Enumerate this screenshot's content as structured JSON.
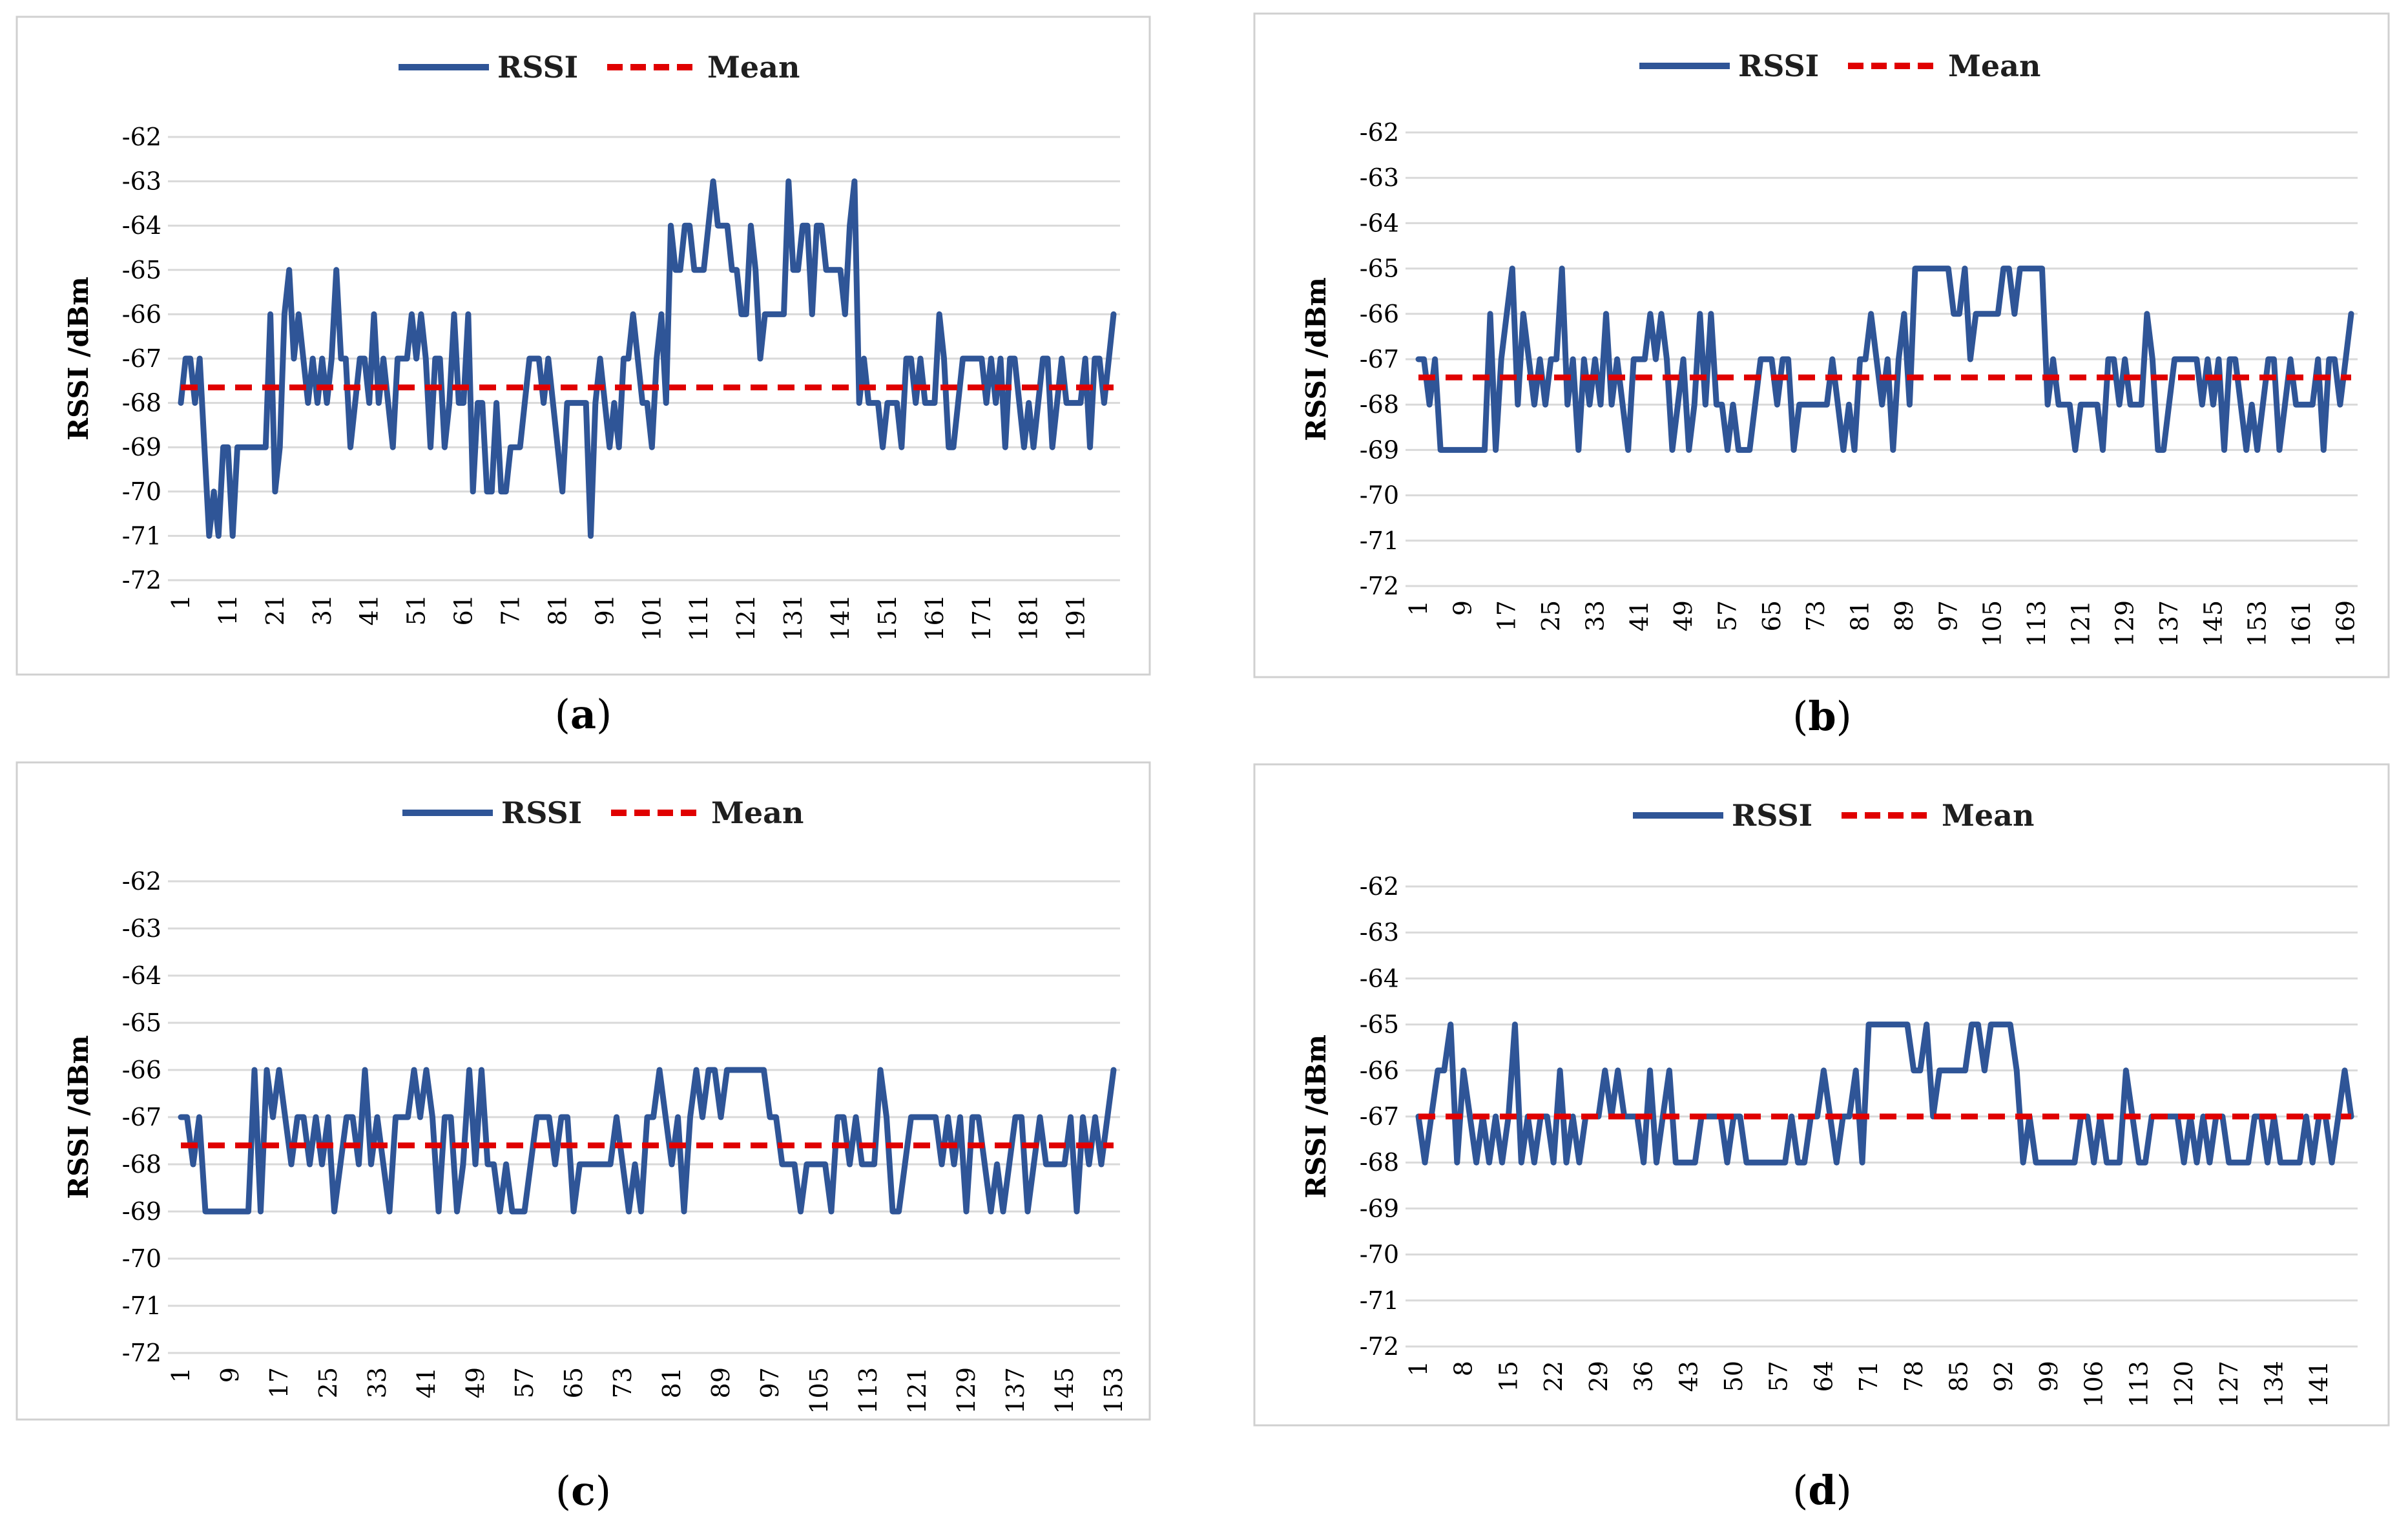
{
  "colors": {
    "rssi": "#2f5597",
    "mean": "#e00000",
    "grid": "#d9d9d9"
  },
  "legend": {
    "rssi_label": "RSSI",
    "mean_label": "Mean"
  },
  "chart_data": [
    {
      "type": "line",
      "caption": "a",
      "ylabel": "RSSI /dBm",
      "yticks": [
        -62,
        -63,
        -64,
        -65,
        -66,
        -67,
        -68,
        -69,
        -70,
        -71,
        -72
      ],
      "ylim": [
        -72,
        -62
      ],
      "xticks": [
        1,
        11,
        21,
        31,
        41,
        51,
        61,
        71,
        81,
        91,
        101,
        111,
        121,
        131,
        141,
        151,
        161,
        171,
        181,
        191
      ],
      "mean": -67.65,
      "series": [
        {
          "name": "RSSI",
          "values": [
            -68,
            -67,
            -67,
            -68,
            -67,
            -69,
            -71,
            -70,
            -71,
            -69,
            -69,
            -71,
            -69,
            -69,
            -69,
            -69,
            -69,
            -69,
            -69,
            -66,
            -70,
            -69,
            -66,
            -65,
            -67,
            -66,
            -67,
            -68,
            -67,
            -68,
            -67,
            -68,
            -67,
            -65,
            -67,
            -67,
            -69,
            -68,
            -67,
            -67,
            -68,
            -66,
            -68,
            -67,
            -68,
            -69,
            -67,
            -67,
            -67,
            -66,
            -67,
            -66,
            -67,
            -69,
            -67,
            -67,
            -69,
            -68,
            -66,
            -68,
            -68,
            -66,
            -70,
            -68,
            -68,
            -70,
            -70,
            -68,
            -70,
            -70,
            -69,
            -69,
            -69,
            -68,
            -67,
            -67,
            -67,
            -68,
            -67,
            -68,
            -69,
            -70,
            -68,
            -68,
            -68,
            -68,
            -68,
            -71,
            -68,
            -67,
            -68,
            -69,
            -68,
            -69,
            -67,
            -67,
            -66,
            -67,
            -68,
            -68,
            -69,
            -67,
            -66,
            -68,
            -64,
            -65,
            -65,
            -64,
            -64,
            -65,
            -65,
            -65,
            -64,
            -63,
            -64,
            -64,
            -64,
            -65,
            -65,
            -66,
            -66,
            -64,
            -65,
            -67,
            -66,
            -66,
            -66,
            -66,
            -66,
            -63,
            -65,
            -65,
            -64,
            -64,
            -66,
            -64,
            -64,
            -65,
            -65,
            -65,
            -65,
            -66,
            -64,
            -63,
            -68,
            -67,
            -68,
            -68,
            -68,
            -69,
            -68,
            -68,
            -68,
            -69,
            -67,
            -67,
            -68,
            -67,
            -68,
            -68,
            -68,
            -66,
            -67,
            -69,
            -69,
            -68,
            -67,
            -67,
            -67,
            -67,
            -67,
            -68,
            -67,
            -68,
            -67,
            -69,
            -67,
            -67,
            -68,
            -69,
            -68,
            -69,
            -68,
            -67,
            -67,
            -69,
            -68,
            -67,
            -68,
            -68,
            -68,
            -68,
            -67,
            -69,
            -67,
            -67,
            -68,
            -67,
            -66
          ]
        }
      ]
    },
    {
      "type": "line",
      "caption": "b",
      "ylabel": "RSSI /dBm",
      "yticks": [
        -62,
        -63,
        -64,
        -65,
        -66,
        -67,
        -68,
        -69,
        -70,
        -71,
        -72
      ],
      "ylim": [
        -72,
        -62
      ],
      "xticks": [
        1,
        9,
        17,
        25,
        33,
        41,
        49,
        57,
        65,
        73,
        81,
        89,
        97,
        105,
        113,
        121,
        129,
        137,
        145,
        153,
        161,
        169
      ],
      "mean": -67.4,
      "series": [
        {
          "name": "RSSI",
          "values": [
            -67,
            -67,
            -68,
            -67,
            -69,
            -69,
            -69,
            -69,
            -69,
            -69,
            -69,
            -69,
            -69,
            -66,
            -69,
            -67,
            -66,
            -65,
            -68,
            -66,
            -67,
            -68,
            -67,
            -68,
            -67,
            -67,
            -65,
            -68,
            -67,
            -69,
            -67,
            -68,
            -67,
            -68,
            -66,
            -68,
            -67,
            -68,
            -69,
            -67,
            -67,
            -67,
            -66,
            -67,
            -66,
            -67,
            -69,
            -68,
            -67,
            -69,
            -68,
            -66,
            -68,
            -66,
            -68,
            -68,
            -69,
            -68,
            -69,
            -69,
            -69,
            -68,
            -67,
            -67,
            -67,
            -68,
            -67,
            -67,
            -69,
            -68,
            -68,
            -68,
            -68,
            -68,
            -68,
            -67,
            -68,
            -69,
            -68,
            -69,
            -67,
            -67,
            -66,
            -67,
            -68,
            -67,
            -69,
            -67,
            -66,
            -68,
            -65,
            -65,
            -65,
            -65,
            -65,
            -65,
            -65,
            -66,
            -66,
            -65,
            -67,
            -66,
            -66,
            -66,
            -66,
            -66,
            -65,
            -65,
            -66,
            -65,
            -65,
            -65,
            -65,
            -65,
            -68,
            -67,
            -68,
            -68,
            -68,
            -69,
            -68,
            -68,
            -68,
            -68,
            -69,
            -67,
            -67,
            -68,
            -67,
            -68,
            -68,
            -68,
            -66,
            -67,
            -69,
            -69,
            -68,
            -67,
            -67,
            -67,
            -67,
            -67,
            -68,
            -67,
            -68,
            -67,
            -69,
            -67,
            -67,
            -68,
            -69,
            -68,
            -69,
            -68,
            -67,
            -67,
            -69,
            -68,
            -67,
            -68,
            -68,
            -68,
            -68,
            -67,
            -69,
            -67,
            -67,
            -68,
            -67,
            -66
          ]
        }
      ]
    },
    {
      "type": "line",
      "caption": "c",
      "ylabel": "RSSI /dBm",
      "yticks": [
        -62,
        -63,
        -64,
        -65,
        -66,
        -67,
        -68,
        -69,
        -70,
        -71,
        -72
      ],
      "ylim": [
        -72,
        -62
      ],
      "xticks": [
        1,
        9,
        17,
        25,
        33,
        41,
        49,
        57,
        65,
        73,
        81,
        89,
        97,
        105,
        113,
        121,
        129,
        137,
        145,
        153
      ],
      "mean": -67.6,
      "series": [
        {
          "name": "RSSI",
          "values": [
            -67,
            -67,
            -68,
            -67,
            -69,
            -69,
            -69,
            -69,
            -69,
            -69,
            -69,
            -69,
            -66,
            -69,
            -66,
            -67,
            -66,
            -67,
            -68,
            -67,
            -67,
            -68,
            -67,
            -68,
            -67,
            -69,
            -68,
            -67,
            -67,
            -68,
            -66,
            -68,
            -67,
            -68,
            -69,
            -67,
            -67,
            -67,
            -66,
            -67,
            -66,
            -67,
            -69,
            -67,
            -67,
            -69,
            -68,
            -66,
            -68,
            -66,
            -68,
            -68,
            -69,
            -68,
            -69,
            -69,
            -69,
            -68,
            -67,
            -67,
            -67,
            -68,
            -67,
            -67,
            -69,
            -68,
            -68,
            -68,
            -68,
            -68,
            -68,
            -67,
            -68,
            -69,
            -68,
            -69,
            -67,
            -67,
            -66,
            -67,
            -68,
            -67,
            -69,
            -67,
            -66,
            -67,
            -66,
            -66,
            -67,
            -66,
            -66,
            -66,
            -66,
            -66,
            -66,
            -66,
            -67,
            -67,
            -68,
            -68,
            -68,
            -69,
            -68,
            -68,
            -68,
            -68,
            -69,
            -67,
            -67,
            -68,
            -67,
            -68,
            -68,
            -68,
            -66,
            -67,
            -69,
            -69,
            -68,
            -67,
            -67,
            -67,
            -67,
            -67,
            -68,
            -67,
            -68,
            -67,
            -69,
            -67,
            -67,
            -68,
            -69,
            -68,
            -69,
            -68,
            -67,
            -67,
            -69,
            -68,
            -67,
            -68,
            -68,
            -68,
            -68,
            -67,
            -69,
            -67,
            -68,
            -67,
            -68,
            -67,
            -66
          ]
        }
      ]
    },
    {
      "type": "line",
      "caption": "d",
      "ylabel": "RSSI /dBm",
      "yticks": [
        -62,
        -63,
        -64,
        -65,
        -66,
        -67,
        -68,
        -69,
        -70,
        -71,
        -72
      ],
      "ylim": [
        -72,
        -62
      ],
      "xticks": [
        1,
        8,
        15,
        22,
        29,
        36,
        43,
        50,
        57,
        64,
        71,
        78,
        85,
        92,
        99,
        106,
        113,
        120,
        127,
        134,
        141
      ],
      "mean": -67.0,
      "series": [
        {
          "name": "RSSI",
          "values": [
            -67,
            -68,
            -67,
            -66,
            -66,
            -65,
            -68,
            -66,
            -67,
            -68,
            -67,
            -68,
            -67,
            -68,
            -67,
            -65,
            -68,
            -67,
            -68,
            -67,
            -67,
            -68,
            -66,
            -68,
            -67,
            -68,
            -67,
            -67,
            -67,
            -66,
            -67,
            -66,
            -67,
            -67,
            -67,
            -68,
            -66,
            -68,
            -67,
            -66,
            -68,
            -68,
            -68,
            -68,
            -67,
            -67,
            -67,
            -67,
            -68,
            -67,
            -67,
            -68,
            -68,
            -68,
            -68,
            -68,
            -68,
            -68,
            -67,
            -68,
            -68,
            -67,
            -67,
            -66,
            -67,
            -68,
            -67,
            -67,
            -66,
            -68,
            -65,
            -65,
            -65,
            -65,
            -65,
            -65,
            -65,
            -66,
            -66,
            -65,
            -67,
            -66,
            -66,
            -66,
            -66,
            -66,
            -65,
            -65,
            -66,
            -65,
            -65,
            -65,
            -65,
            -66,
            -68,
            -67,
            -68,
            -68,
            -68,
            -68,
            -68,
            -68,
            -68,
            -67,
            -67,
            -68,
            -67,
            -68,
            -68,
            -68,
            -66,
            -67,
            -68,
            -68,
            -67,
            -67,
            -67,
            -67,
            -67,
            -68,
            -67,
            -68,
            -67,
            -68,
            -67,
            -67,
            -68,
            -68,
            -68,
            -68,
            -67,
            -67,
            -68,
            -67,
            -68,
            -68,
            -68,
            -68,
            -67,
            -68,
            -67,
            -67,
            -68,
            -67,
            -66,
            -67
          ]
        }
      ]
    }
  ]
}
